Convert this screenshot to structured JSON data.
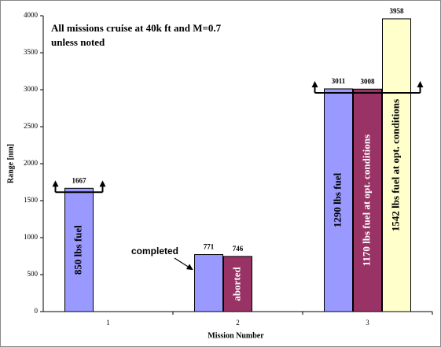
{
  "chart_data": {
    "type": "bar",
    "title_lines": [
      "All missions cruise at 40k ft and M=0.7",
      "unless noted"
    ],
    "x_label": "Mission Number",
    "y_label": "Range [nm]",
    "categories": [
      "1",
      "2",
      "3"
    ],
    "series": [
      {
        "color": "#9999ff",
        "text_color": "#000000",
        "values": [
          1667,
          771,
          3011
        ],
        "bar_labels": [
          "850 lbs fuel",
          null,
          "1290 lbs fuel"
        ],
        "bracket": [
          true,
          false,
          true
        ]
      },
      {
        "color": "#993366",
        "text_color": "#ffffff",
        "values": [
          null,
          746,
          3008
        ],
        "bar_labels": [
          null,
          "aborted",
          "1170 lbs fuel at opt. conditions"
        ]
      },
      {
        "color": "#ffffcc",
        "text_color": "#000000",
        "values": [
          null,
          null,
          3958
        ],
        "bar_labels": [
          null,
          null,
          "1542 lbs fuel at opt. conditions"
        ]
      }
    ],
    "annotation": "completed",
    "ylim": [
      0,
      4000
    ],
    "yticks": [
      0,
      500,
      1000,
      1500,
      2000,
      2500,
      3000,
      3500,
      4000
    ]
  }
}
